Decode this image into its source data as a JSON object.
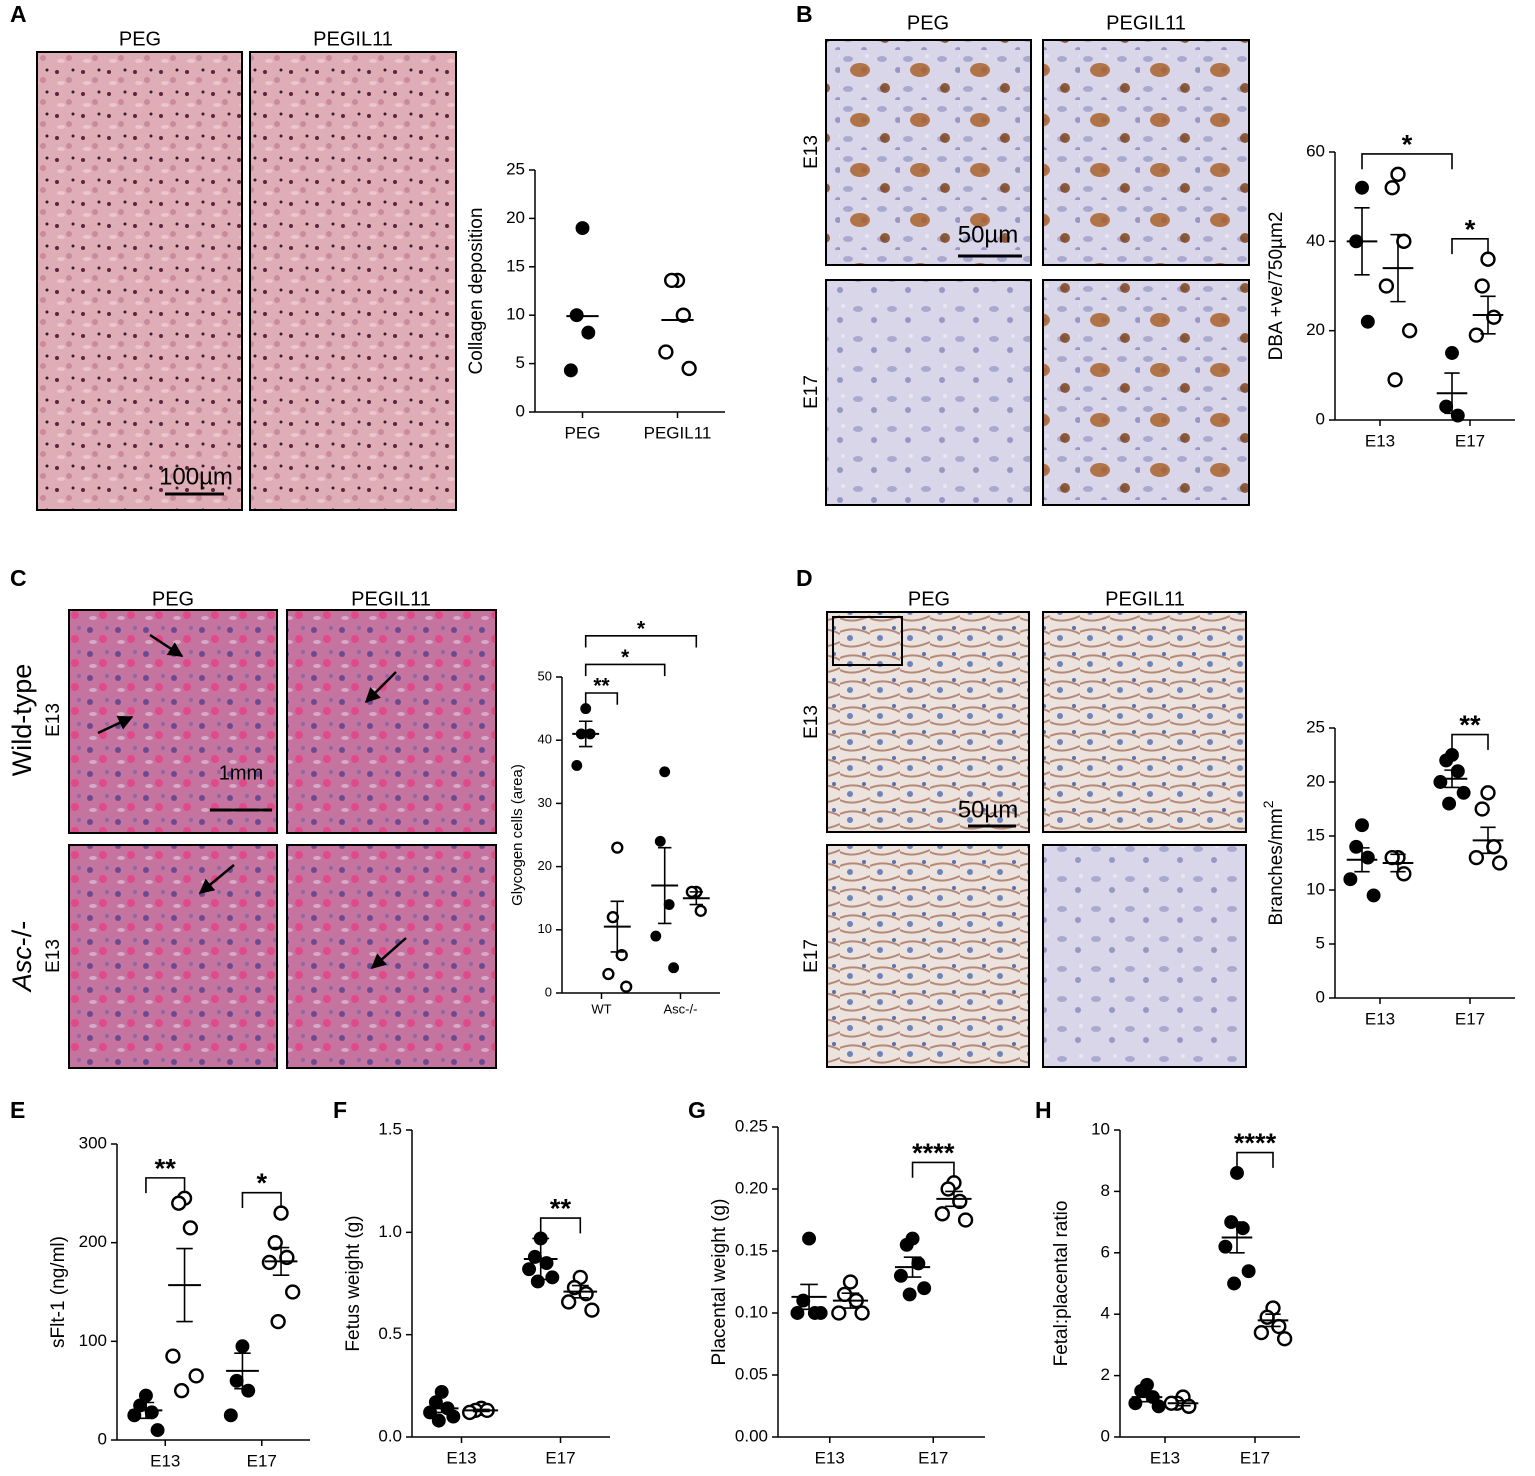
{
  "figure": {
    "panels": [
      {
        "letter": "A",
        "columns": [
          "PEG",
          "PEGIL11"
        ],
        "scale_bar": "100µm"
      },
      {
        "letter": "B",
        "columns": [
          "PEG",
          "PEGIL11"
        ],
        "rows": [
          "E13",
          "E17"
        ],
        "scale_bar": "50µm"
      },
      {
        "letter": "C",
        "columns": [
          "PEG",
          "PEGIL11"
        ],
        "rows": [
          {
            "main": "Wild-type",
            "sub": "E13"
          },
          {
            "main_italic": "Asc",
            "main": "-/-",
            "sub": "E13"
          }
        ],
        "scale_bar": "1mm"
      },
      {
        "letter": "D",
        "columns": [
          "PEG",
          "PEGIL11"
        ],
        "rows": [
          "E13",
          "E17"
        ],
        "scale_bar": "50µm"
      },
      {
        "letter": "E"
      },
      {
        "letter": "F"
      },
      {
        "letter": "G"
      },
      {
        "letter": "H"
      }
    ]
  },
  "chart_data": [
    {
      "type": "dot",
      "y_label": "Collagen deposition",
      "categories": [
        "PEG",
        "PEGIL11"
      ],
      "ylim": [
        0,
        25
      ],
      "yticks": [
        0,
        5,
        10,
        15,
        20,
        25
      ],
      "series": [
        {
          "marker": "filled",
          "color": "#000000",
          "points": [
            [
              19,
              10,
              8.2,
              4.3
            ],
            null
          ],
          "centers": [
            9.9,
            null
          ]
        },
        {
          "marker": "open",
          "color": "#000000",
          "points": [
            null,
            [
              13.6,
              13.6,
              10,
              6.2,
              4.5
            ]
          ],
          "centers": [
            null,
            9.5
          ]
        }
      ]
    },
    {
      "type": "dot",
      "y_label": "DBA +ve/750µm2",
      "categories": [
        "E13",
        "E17"
      ],
      "ylim": [
        0,
        60
      ],
      "yticks": [
        0,
        20,
        40,
        60
      ],
      "series": [
        {
          "marker": "filled",
          "color": "#000000",
          "points": [
            [
              52,
              40,
              22
            ],
            [
              15,
              3,
              1
            ]
          ],
          "centers": [
            40,
            6
          ],
          "errors": [
            7.5,
            4.5
          ]
        },
        {
          "marker": "open",
          "color": "#000000",
          "points": [
            [
              55,
              52,
              40,
              30,
              20,
              9
            ],
            [
              36,
              30,
              23,
              19
            ]
          ],
          "centers": [
            34,
            23.5
          ],
          "errors": [
            7.5,
            4.2
          ]
        }
      ],
      "brackets": [
        {
          "text": "*",
          "from": [
            1,
            0
          ],
          "to": [
            1,
            1
          ]
        },
        {
          "text": "*",
          "from": [
            0,
            0
          ],
          "to": [
            1,
            0
          ]
        }
      ]
    },
    {
      "type": "dot",
      "y_label": "Glycogen cells (area)",
      "categories": [
        "WT",
        "Asc-/-"
      ],
      "ylim": [
        0,
        50
      ],
      "yticks": [
        0,
        10,
        20,
        30,
        40,
        50
      ],
      "series": [
        {
          "marker": "filled",
          "color": "#000000",
          "points": [
            [
              45,
              41,
              41,
              36
            ],
            [
              35,
              24,
              14,
              9,
              4
            ]
          ],
          "centers": [
            41,
            17
          ],
          "errors": [
            2,
            6
          ]
        },
        {
          "marker": "open",
          "color": "#000000",
          "points": [
            [
              23,
              12,
              6,
              3,
              1
            ],
            [
              16,
              16,
              13
            ]
          ],
          "centers": [
            10.5,
            15
          ],
          "errors": [
            4,
            1
          ]
        }
      ],
      "brackets": [
        {
          "text": "**",
          "from": [
            0,
            0
          ],
          "to": [
            0,
            1
          ]
        },
        {
          "text": "*",
          "from": [
            0,
            0
          ],
          "to": [
            1,
            0
          ]
        },
        {
          "text": "*",
          "from": [
            0,
            0
          ],
          "to": [
            1,
            1
          ]
        }
      ]
    },
    {
      "type": "dot",
      "y_label": "Branches/mm",
      "y_label_sup": "2",
      "categories": [
        "E13",
        "E17"
      ],
      "ylim": [
        0,
        25
      ],
      "yticks": [
        0,
        5,
        10,
        15,
        20,
        25
      ],
      "series": [
        {
          "marker": "filled",
          "color": "#000000",
          "points": [
            [
              16,
              14,
              13,
              11,
              9.5
            ],
            [
              22.5,
              22,
              21,
              20,
              19,
              18
            ]
          ],
          "centers": [
            12.8,
            20.3
          ],
          "errors": [
            1.1,
            0.8
          ]
        },
        {
          "marker": "open",
          "color": "#000000",
          "points": [
            [
              13,
              13,
              11.5
            ],
            [
              19,
              17.5,
              14,
              13,
              12.5
            ]
          ],
          "centers": [
            12.5,
            14.6
          ],
          "errors": [
            0.8,
            1.2
          ]
        }
      ],
      "brackets": [
        {
          "text": "**",
          "from": [
            1,
            0
          ],
          "to": [
            1,
            1
          ]
        }
      ]
    },
    {
      "type": "dot",
      "y_label": "sFlt-1 (ng/ml)",
      "categories": [
        "E13",
        "E17"
      ],
      "ylim": [
        0,
        300
      ],
      "yticks": [
        0,
        100,
        200,
        300
      ],
      "series": [
        {
          "marker": "filled",
          "color": "#000000",
          "points": [
            [
              45,
              35,
              28,
              25,
              10
            ],
            [
              95,
              60,
              50,
              25
            ]
          ],
          "centers": [
            30,
            70
          ],
          "errors": [
            8,
            18
          ]
        },
        {
          "marker": "open",
          "color": "#000000",
          "points": [
            [
              245,
              240,
              215,
              85,
              65,
              50
            ],
            [
              230,
              200,
              185,
              180,
              150,
              120
            ]
          ],
          "centers": [
            157,
            181
          ],
          "errors": [
            37,
            14
          ]
        }
      ],
      "brackets": [
        {
          "text": "**",
          "from": [
            0,
            0
          ],
          "to": [
            0,
            1
          ]
        },
        {
          "text": "*",
          "from": [
            1,
            0
          ],
          "to": [
            1,
            1
          ]
        }
      ]
    },
    {
      "type": "dot",
      "y_label": "Fetus weight (g)",
      "categories": [
        "E13",
        "E17"
      ],
      "ylim": [
        0,
        1.5
      ],
      "yticks": [
        {
          "value": 0,
          "label": "0.0"
        },
        0.5,
        {
          "value": 1,
          "label": "1.0"
        },
        1.5
      ],
      "series": [
        {
          "marker": "filled",
          "color": "#000000",
          "points": [
            [
              0.22,
              0.17,
              0.14,
              0.12,
              0.1,
              0.08
            ],
            [
              0.97,
              0.88,
              0.85,
              0.82,
              0.78,
              0.76
            ]
          ],
          "centers": [
            0.14,
            0.87
          ],
          "errors": [
            0.02,
            0.1
          ]
        },
        {
          "marker": "open",
          "color": "#000000",
          "points": [
            [
              0.14,
              0.13,
              0.13,
              0.12
            ],
            [
              0.78,
              0.73,
              0.7,
              0.66,
              0.62
            ]
          ],
          "centers": [
            0.13,
            0.71
          ],
          "errors": [
            0.005,
            0.03
          ]
        }
      ],
      "brackets": [
        {
          "text": "**",
          "from": [
            1,
            0
          ],
          "to": [
            1,
            1
          ]
        }
      ]
    },
    {
      "type": "dot",
      "y_label": "Placental weight (g)",
      "categories": [
        "E13",
        "E17"
      ],
      "ylim": [
        0,
        0.25
      ],
      "yticks": [
        {
          "value": 0,
          "label": "0.00"
        },
        0.05,
        {
          "value": 0.1,
          "label": "0.10"
        },
        0.15,
        {
          "value": 0.2,
          "label": "0.20"
        },
        0.25
      ],
      "series": [
        {
          "marker": "filled",
          "color": "#000000",
          "points": [
            [
              0.16,
              0.11,
              0.1,
              0.1,
              0.1
            ],
            [
              0.16,
              0.155,
              0.14,
              0.13,
              0.12,
              0.115
            ]
          ],
          "centers": [
            0.113,
            0.137
          ],
          "errors": [
            0.01,
            0.008
          ]
        },
        {
          "marker": "open",
          "color": "#000000",
          "points": [
            [
              0.125,
              0.115,
              0.11,
              0.1,
              0.1
            ],
            [
              0.205,
              0.2,
              0.19,
              0.18,
              0.175
            ]
          ],
          "centers": [
            0.11,
            0.192
          ],
          "errors": [
            0.006,
            0.006
          ]
        }
      ],
      "brackets": [
        {
          "text": "****",
          "from": [
            1,
            0
          ],
          "to": [
            1,
            1
          ]
        }
      ]
    },
    {
      "type": "dot",
      "y_label": "Fetal:placental ratio",
      "categories": [
        "E13",
        "E17"
      ],
      "ylim": [
        0,
        10
      ],
      "yticks": [
        0,
        2,
        4,
        6,
        8,
        10
      ],
      "series": [
        {
          "marker": "filled",
          "color": "#000000",
          "points": [
            [
              1.7,
              1.5,
              1.3,
              1.1,
              1
            ],
            [
              8.6,
              7,
              6.8,
              6.2,
              5.4,
              5
            ]
          ],
          "centers": [
            1.3,
            6.5
          ],
          "errors": [
            0.15,
            0.5
          ]
        },
        {
          "marker": "open",
          "color": "#000000",
          "points": [
            [
              1.3,
              1.1,
              1,
              1.1
            ],
            [
              4.2,
              3.9,
              3.6,
              3.4,
              3.2
            ]
          ],
          "centers": [
            1.1,
            3.8
          ],
          "errors": [
            0.08,
            0.2
          ]
        }
      ],
      "brackets": [
        {
          "text": "****",
          "from": [
            1,
            0
          ],
          "to": [
            1,
            1
          ]
        }
      ]
    }
  ]
}
